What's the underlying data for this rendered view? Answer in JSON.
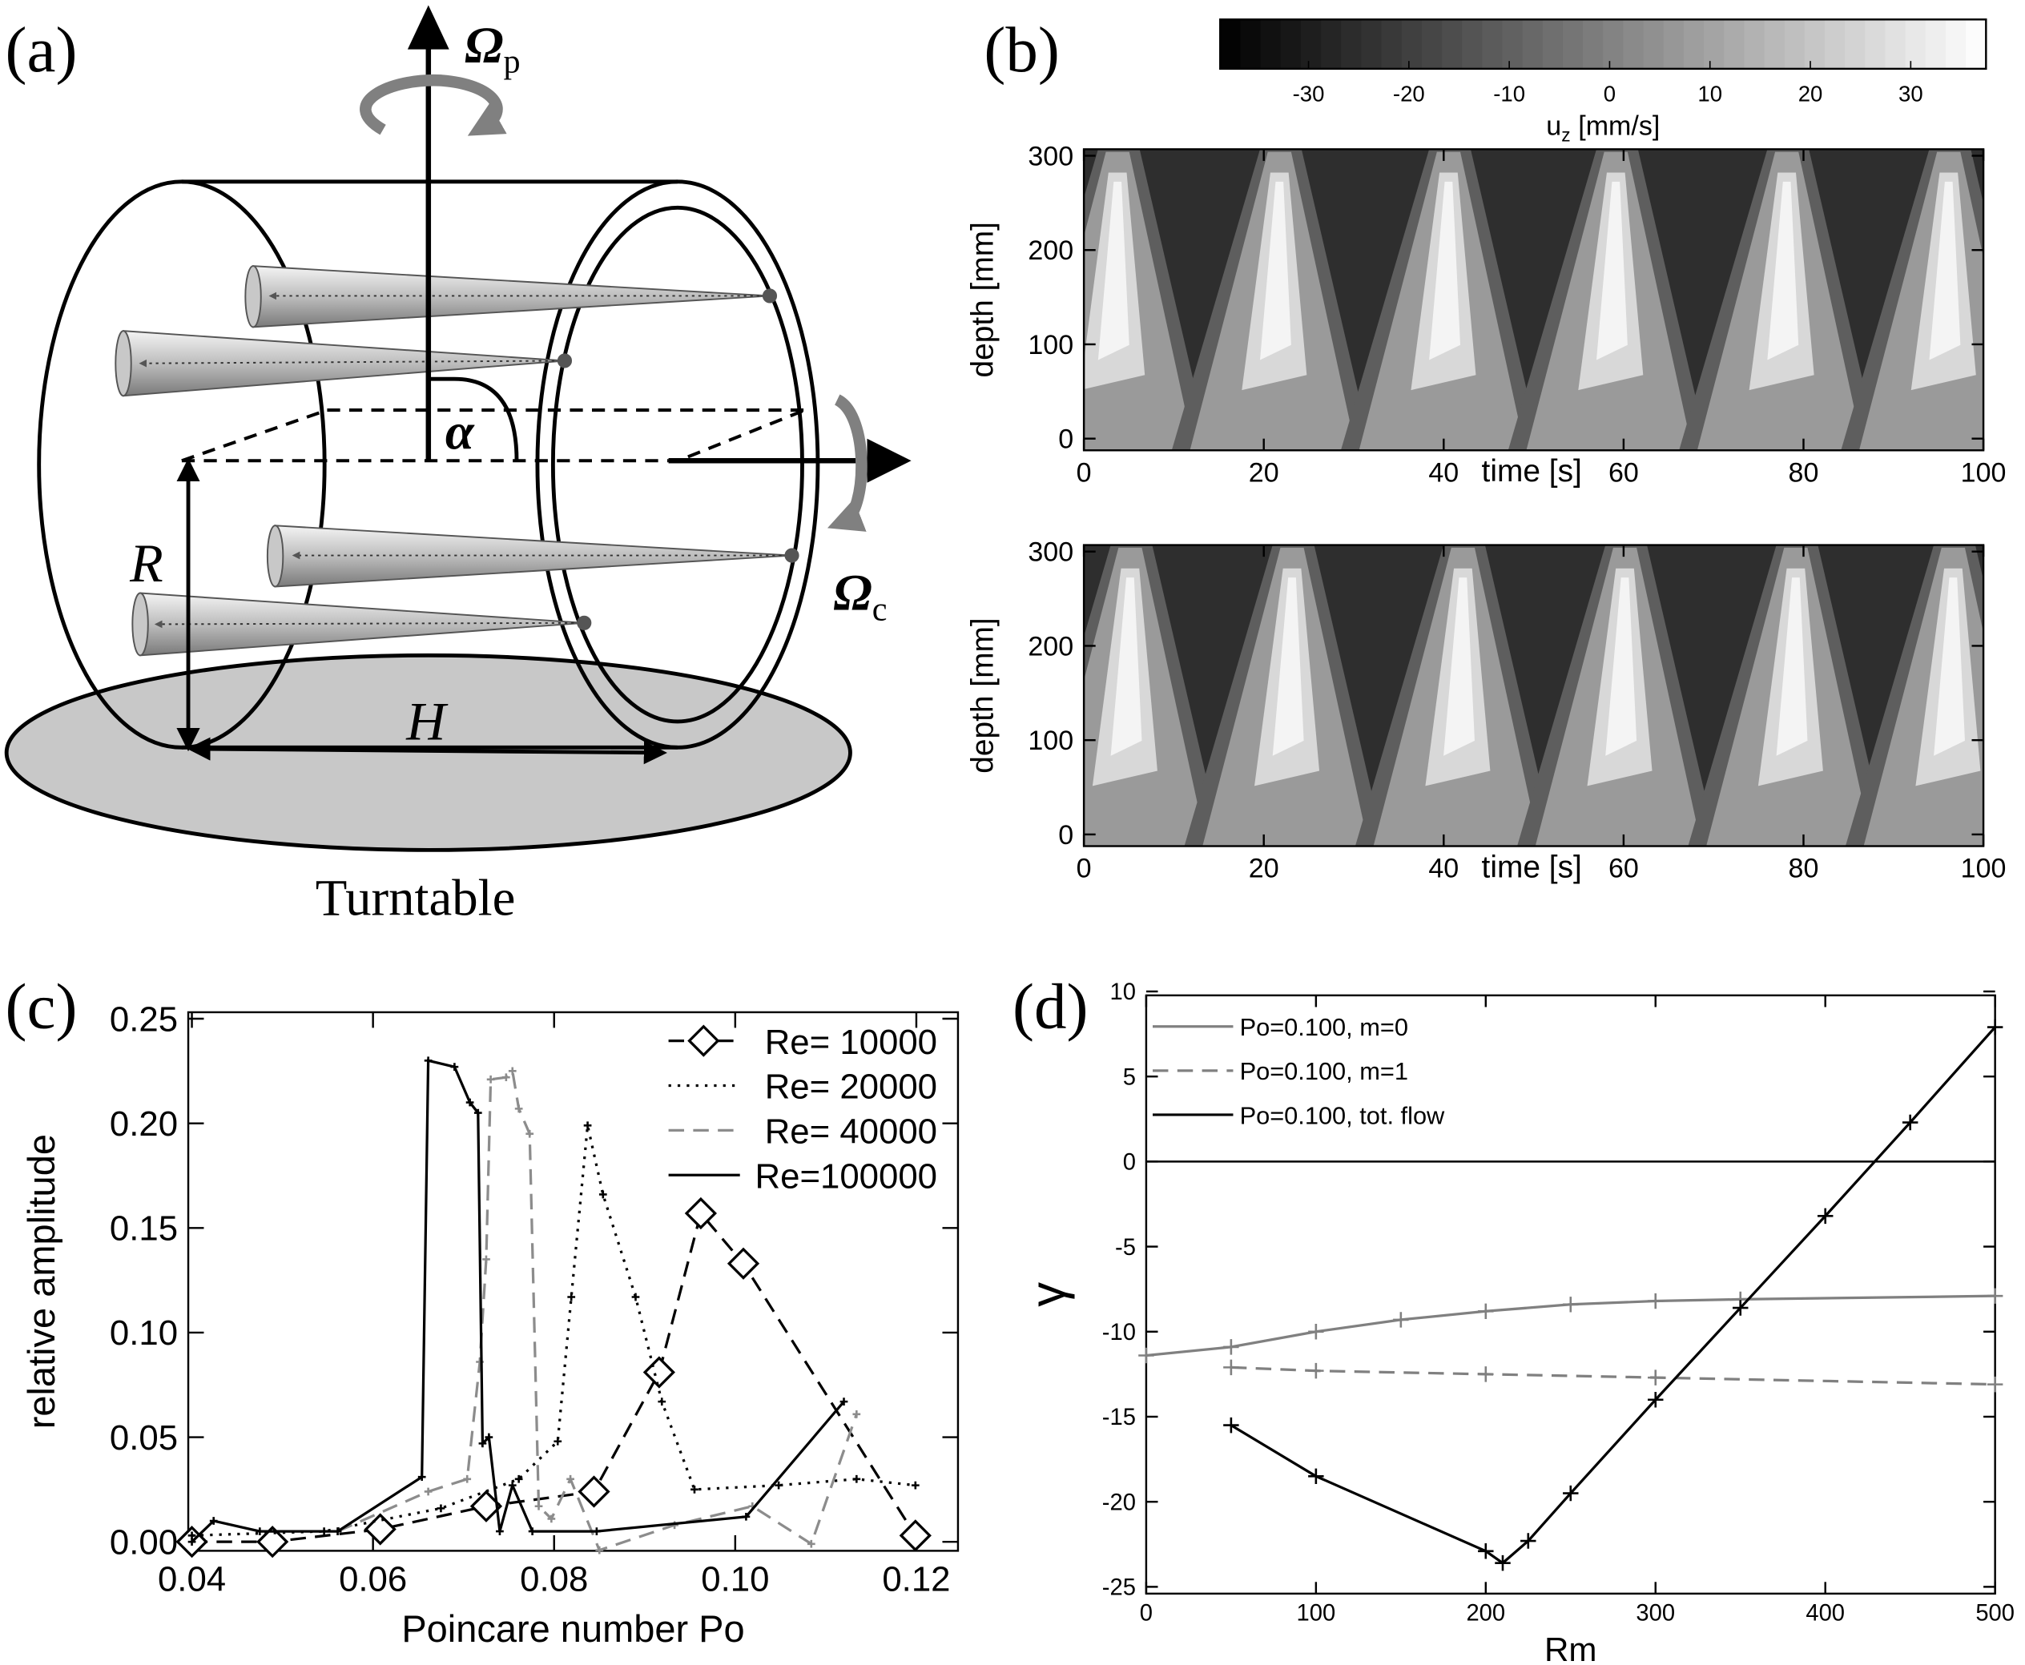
{
  "diagram": {
    "panel_label": "(a)",
    "omega_p": {
      "symbol": "Ω",
      "sub": "p"
    },
    "omega_c": {
      "symbol": "Ω",
      "sub": "c"
    },
    "alpha": "α",
    "radius": "R",
    "height": "H",
    "base": "Turntable"
  },
  "chart_data": [
    {
      "type": "heatmap",
      "panel_label": "(b)",
      "xlabel": "time [s]",
      "ylabel": "depth [mm]",
      "xlim": [
        0,
        100
      ],
      "ylim": [
        -12.4,
        306.9
      ],
      "xticks": [
        0,
        20,
        40,
        60,
        80,
        100
      ],
      "yticks": [
        0,
        100,
        200,
        300
      ],
      "colormap": [
        "#000000",
        "#ffffff"
      ],
      "colorbar": {
        "lim": [
          -38.8,
          37.5
        ],
        "ticks": [
          -30,
          -20,
          -10,
          0,
          10,
          20,
          30
        ],
        "label": {
          "main": "u",
          "sub": "z",
          "unit": "[mm/s]"
        }
      }
    },
    {
      "type": "heatmap",
      "xlabel": "time [s]",
      "ylabel": "depth [mm]",
      "xlim": [
        0,
        100
      ],
      "ylim": [
        -12.4,
        306.9
      ],
      "xticks": [
        0,
        20,
        40,
        60,
        80,
        100
      ],
      "yticks": [
        0,
        100,
        200,
        300
      ],
      "colormap": [
        "#000000",
        "#ffffff"
      ]
    },
    {
      "type": "line",
      "panel_label": "(c)",
      "xlabel": "Poincare number Po",
      "ylabel": "relative amplitude",
      "xlim": [
        0.0396,
        0.1246
      ],
      "ylim": [
        -0.0043,
        0.2531
      ],
      "xticks": [
        0.04,
        0.06,
        0.08,
        {
          "value": 0.1,
          "label": "0.10"
        },
        0.12
      ],
      "yticks": [
        {
          "value": 0,
          "label": "0.00"
        },
        0.05,
        {
          "value": 0.1,
          "label": "0.10"
        },
        0.15,
        {
          "value": 0.2,
          "label": "0.20"
        },
        0.25
      ],
      "legend": "upper right",
      "series": [
        {
          "name": "Re= 10000",
          "color": "#000000",
          "line_style": "dash",
          "marker": "diamond",
          "x": [
            0.04,
            0.0489,
            0.0608,
            0.0725,
            0.0844,
            0.0916,
            0.0962,
            0.1009,
            0.1199
          ],
          "values": [
            0.0,
            0.0,
            0.006,
            0.017,
            0.024,
            0.081,
            0.157,
            0.133,
            0.003
          ]
        },
        {
          "name": "Re= 20000",
          "color": "#000000",
          "line_style": "dot",
          "marker": "plus",
          "x": [
            0.04,
            0.0546,
            0.0675,
            0.0761,
            0.0804,
            0.0819,
            0.0837,
            0.0854,
            0.089,
            0.0919,
            0.0955,
            0.1048,
            0.1134,
            0.1199
          ],
          "values": [
            0.003,
            0.005,
            0.016,
            0.03,
            0.048,
            0.117,
            0.199,
            0.166,
            0.117,
            0.067,
            0.025,
            0.027,
            0.03,
            0.027
          ]
        },
        {
          "name": "Re= 40000",
          "color": "#8c8c8c",
          "line_style": "dash",
          "marker": "plus",
          "x": [
            0.0561,
            0.0661,
            0.0704,
            0.0718,
            0.0725,
            0.073,
            0.0747,
            0.0754,
            0.0761,
            0.0773,
            0.0783,
            0.0797,
            0.0818,
            0.085,
            0.0933,
            0.1019,
            0.1084,
            0.1134
          ],
          "values": [
            0.005,
            0.024,
            0.03,
            0.086,
            0.135,
            0.221,
            0.222,
            0.225,
            0.207,
            0.195,
            0.017,
            0.011,
            0.03,
            -0.004,
            0.008,
            0.017,
            -0.001,
            0.061
          ]
        },
        {
          "name": "Re=100000",
          "color": "#000000",
          "line_style": "solid",
          "marker": "plus",
          "x": [
            0.04,
            0.0424,
            0.0475,
            0.0561,
            0.0654,
            0.0661,
            0.069,
            0.0707,
            0.0716,
            0.0721,
            0.0728,
            0.074,
            0.0754,
            0.0776,
            0.0847,
            0.1012,
            0.112
          ],
          "values": [
            0.0,
            0.01,
            0.005,
            0.005,
            0.031,
            0.23,
            0.227,
            0.21,
            0.205,
            0.047,
            0.05,
            0.005,
            0.027,
            0.005,
            0.005,
            0.012,
            0.067
          ]
        }
      ]
    },
    {
      "type": "line",
      "panel_label": "(d)",
      "xlabel": "Rm",
      "ylabel": "γ",
      "xlim": [
        0,
        500
      ],
      "ylim": [
        -25.4,
        9.77
      ],
      "xticks": [
        0,
        100,
        200,
        300,
        400,
        500
      ],
      "yticks": [
        10,
        5,
        0,
        -5,
        -10,
        -15,
        -20,
        -25
      ],
      "reference_line": 0,
      "legend": "upper left",
      "series": [
        {
          "name": "Po=0.100, m=0",
          "color": "#808080",
          "line_style": "solid",
          "marker": "plus",
          "x": [
            0,
            50,
            100,
            150,
            200,
            250,
            300,
            350,
            500
          ],
          "values": [
            -11.4,
            -10.9,
            -10.0,
            -9.3,
            -8.8,
            -8.4,
            -8.2,
            -8.1,
            -7.9
          ]
        },
        {
          "name": "Po=0.100, m=1",
          "color": "#808080",
          "line_style": "dash",
          "marker": "plus",
          "x": [
            50,
            100,
            200,
            300,
            500
          ],
          "values": [
            -12.1,
            -12.3,
            -12.5,
            -12.7,
            -13.1
          ]
        },
        {
          "name": "Po=0.100, tot. flow",
          "color": "#000000",
          "line_style": "solid",
          "marker": "plus",
          "x": [
            50,
            100,
            200,
            210,
            225,
            250,
            300,
            350,
            400,
            450,
            500
          ],
          "values": [
            -15.5,
            -18.5,
            -22.9,
            -23.6,
            -22.3,
            -19.5,
            -14.0,
            -8.6,
            -3.2,
            2.3,
            7.9
          ]
        }
      ]
    }
  ]
}
